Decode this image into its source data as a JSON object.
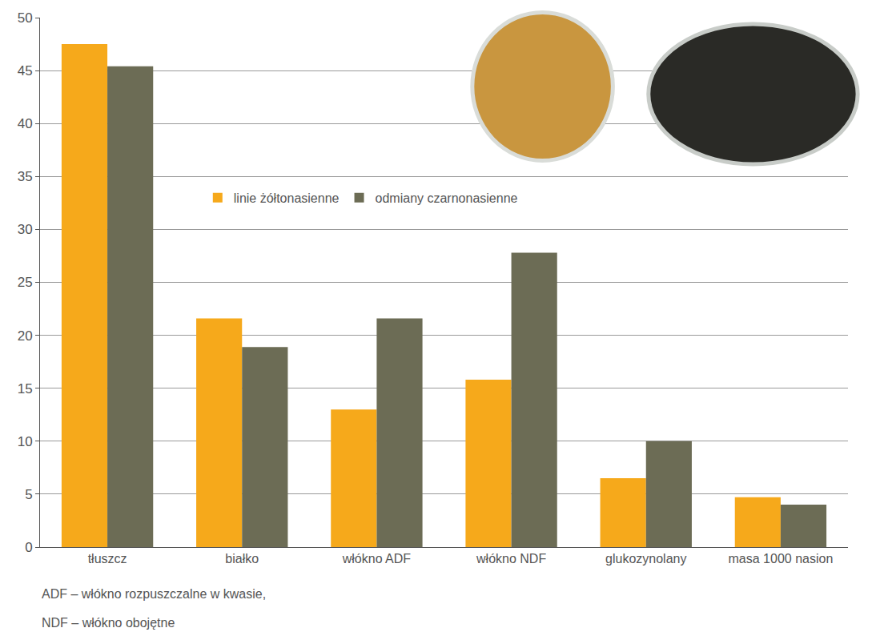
{
  "chart_data": {
    "type": "bar",
    "categories": [
      "tłuszcz",
      "białko",
      "włókno ADF",
      "włókno NDF",
      "glukozynolany",
      "masa 1000 nasion"
    ],
    "series": [
      {
        "name": "linie żółtonasienne",
        "color": "#f6a91b",
        "values": [
          47.5,
          21.6,
          13.0,
          15.8,
          6.5,
          4.7
        ]
      },
      {
        "name": "odmiany czarnonasienne",
        "color": "#6c6c55",
        "values": [
          45.4,
          18.9,
          21.6,
          27.8,
          10.0,
          4.0
        ]
      }
    ],
    "ylim": [
      0,
      50
    ],
    "yticks": [
      0,
      5,
      10,
      15,
      20,
      25,
      30,
      35,
      40,
      45,
      50
    ],
    "grid": true,
    "legend": "center",
    "annotations": [
      "ADF – włókno rozpuszczalne w kwasie,",
      "NDF – włókno obojętne"
    ]
  }
}
